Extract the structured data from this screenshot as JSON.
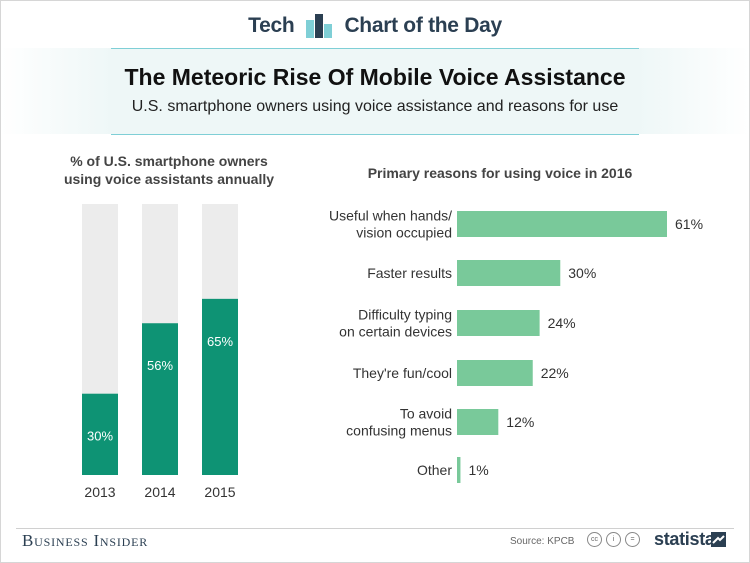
{
  "header": {
    "brand_left": "Tech",
    "brand_right": "Chart of the Day",
    "title": "The Meteoric Rise Of Mobile Voice Assistance",
    "subtitle": "U.S. smartphone owners using voice assistance and reasons for use"
  },
  "colors": {
    "bar": "#0e9374",
    "track": "#ececec",
    "bar_light": "#79c99a",
    "brand": "#2b3f52"
  },
  "chart_data": [
    {
      "type": "bar",
      "title": "% of U.S. smartphone owners using voice assistants annually",
      "title_lines": [
        "% of U.S. smartphone owners",
        "using voice assistants annually"
      ],
      "categories": [
        "2013",
        "2014",
        "2015"
      ],
      "values": [
        30,
        56,
        65
      ],
      "labels": [
        "30%",
        "56%",
        "65%"
      ],
      "ylim": [
        0,
        100
      ]
    },
    {
      "type": "bar",
      "orientation": "horizontal",
      "title": "Primary reasons for using voice in 2016",
      "categories": [
        [
          "Useful when hands/",
          "vision occupied"
        ],
        [
          "Faster results"
        ],
        [
          "Difficulty typing",
          "on certain devices"
        ],
        [
          "They're fun/cool"
        ],
        [
          "To avoid",
          "confusing menus"
        ],
        [
          "Other"
        ]
      ],
      "values": [
        61,
        30,
        24,
        22,
        12,
        1
      ],
      "labels": [
        "61%",
        "30%",
        "24%",
        "22%",
        "12%",
        "1%"
      ]
    }
  ],
  "footer": {
    "publisher": "Business Insider",
    "source": "Source: KPCB",
    "license_icons": [
      "cc-icon",
      "attribution-icon",
      "no-derivatives-icon"
    ],
    "cc_glyphs": [
      "cc",
      "i",
      "="
    ],
    "statista": "statista"
  }
}
